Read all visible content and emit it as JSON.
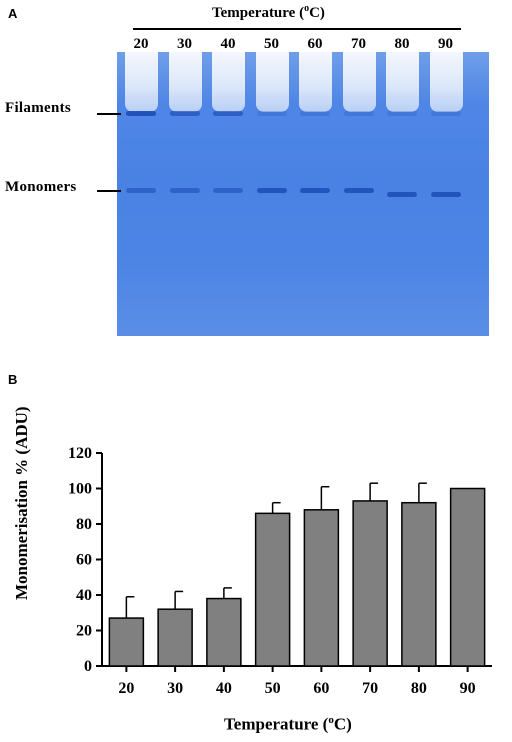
{
  "panel_a": {
    "letter": "A",
    "title": "Temperature (",
    "title_sup": "o",
    "title_end": "C)",
    "lanes": [
      "20",
      "30",
      "40",
      "50",
      "60",
      "70",
      "80",
      "90"
    ],
    "filaments_label": "Filaments",
    "monomers_label": "Monomers",
    "gel_color": "#4a82e4",
    "band_color": "#1f4fb8"
  },
  "chart_data": {
    "type": "bar",
    "panel_letter": "B",
    "categories": [
      "20",
      "30",
      "40",
      "50",
      "60",
      "70",
      "80",
      "90"
    ],
    "values": [
      27,
      32,
      38,
      86,
      88,
      93,
      92,
      100
    ],
    "errors": [
      12,
      10,
      6,
      6,
      13,
      10,
      11,
      0
    ],
    "ylim": [
      0,
      120
    ],
    "yticks": [
      0,
      20,
      40,
      60,
      80,
      100,
      120
    ],
    "ylabel": "Monomerisation % (ADU)",
    "xlabel": "Temperature (",
    "xlabel_sup": "o",
    "xlabel_end": "C)",
    "bar_color": "#808080",
    "grid": false
  }
}
